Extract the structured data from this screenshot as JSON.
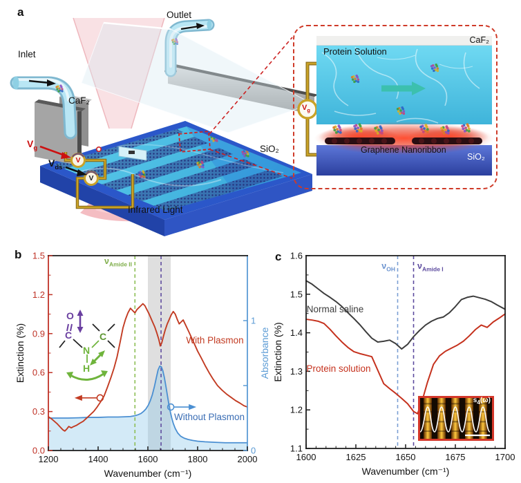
{
  "panel_labels": {
    "a": "a",
    "b": "b",
    "c": "c"
  },
  "panel_a": {
    "inlet": "Inlet",
    "outlet": "Outlet",
    "caf2": "CaF₂",
    "sio2": "SiO₂",
    "infrared": "Infrared Light",
    "vg": {
      "main": "V",
      "sub": "g"
    },
    "vds": {
      "main": "V",
      "sub": "ds"
    },
    "meter_glyph": "V",
    "inset": {
      "caf2": "CaF₂",
      "protein_solution": "Protein Solution",
      "graphene": "Graphene Nanoribbon",
      "sio2": "SiO₂",
      "vg": {
        "main": "V",
        "sub": "g"
      }
    }
  },
  "chart_data": [
    {
      "panel": "b",
      "type": "line",
      "xlabel": "Wavenumber (cm⁻¹)",
      "ylabel": "Extinction (%)",
      "ylabel_right": "Absorbance",
      "xlim": [
        1200,
        2000
      ],
      "ylim": [
        0,
        1.5
      ],
      "xticks": [
        1200,
        1400,
        1600,
        1800,
        2000
      ],
      "xtick_labels": [
        "1200",
        "1400",
        "1600",
        "1800",
        "2000"
      ],
      "xminor": 50,
      "yticks": [
        0,
        0.3,
        0.6,
        0.9,
        1.2,
        1.5
      ],
      "ytick_labels": [
        "0.0",
        "0.3",
        "0.6",
        "0.9",
        "1.2",
        "1.5"
      ],
      "yminor": 0.15,
      "right_ticks": [
        {
          "v": 0,
          "label": "0"
        },
        {
          "v": 0.5,
          "label": ""
        },
        {
          "v": 1,
          "label": "1"
        }
      ],
      "axis_colors": {
        "left": "#bf3226",
        "right": "#5b9bd5",
        "top": "#1a1a1a",
        "bottom": "#1a1a1a"
      },
      "band": {
        "x0": 1600,
        "x1": 1692,
        "color": "rgba(130,130,130,0.26)"
      },
      "vlines": [
        {
          "x": 1548,
          "color": "#8cbe54",
          "label": {
            "main": "ν",
            "sub": "Amide II"
          }
        },
        {
          "x": 1653,
          "color": "#5f4b9e",
          "label": null
        }
      ],
      "series": [
        {
          "name": "Without Plasmon",
          "color": "#4a8fd2",
          "width": 1.8,
          "fill": "rgba(140,200,235,0.38)",
          "x": [
            1200,
            1240,
            1280,
            1320,
            1360,
            1400,
            1440,
            1480,
            1510,
            1530,
            1548,
            1560,
            1572,
            1582,
            1592,
            1602,
            1610,
            1618,
            1626,
            1634,
            1641,
            1648,
            1654,
            1660,
            1666,
            1672,
            1678,
            1684,
            1690,
            1696,
            1702,
            1710,
            1720,
            1732,
            1746,
            1762,
            1780,
            1800,
            1830,
            1870,
            1910,
            1950,
            2000
          ],
          "y": [
            0.25,
            0.25,
            0.25,
            0.252,
            0.255,
            0.255,
            0.258,
            0.258,
            0.26,
            0.262,
            0.268,
            0.275,
            0.285,
            0.3,
            0.32,
            0.35,
            0.385,
            0.43,
            0.49,
            0.56,
            0.62,
            0.65,
            0.645,
            0.615,
            0.565,
            0.5,
            0.43,
            0.36,
            0.3,
            0.25,
            0.21,
            0.17,
            0.135,
            0.11,
            0.095,
            0.085,
            0.078,
            0.072,
            0.067,
            0.063,
            0.06,
            0.06,
            0.06
          ]
        },
        {
          "name": "With Plasmon",
          "color": "#c23b22",
          "width": 1.9,
          "x": [
            1200,
            1212,
            1224,
            1236,
            1248,
            1258,
            1266,
            1274,
            1282,
            1292,
            1302,
            1314,
            1326,
            1340,
            1354,
            1368,
            1382,
            1396,
            1410,
            1424,
            1438,
            1452,
            1464,
            1476,
            1488,
            1500,
            1510,
            1520,
            1530,
            1540,
            1548,
            1556,
            1564,
            1572,
            1580,
            1588,
            1596,
            1604,
            1612,
            1620,
            1628,
            1636,
            1644,
            1650,
            1656,
            1662,
            1670,
            1678,
            1686,
            1694,
            1702,
            1710,
            1718,
            1726,
            1734,
            1742,
            1752,
            1762,
            1774,
            1786,
            1800,
            1814,
            1830,
            1846,
            1862,
            1880,
            1898,
            1916,
            1934,
            1952,
            1970,
            1986,
            2000
          ],
          "y": [
            0.26,
            0.245,
            0.225,
            0.205,
            0.18,
            0.16,
            0.15,
            0.165,
            0.185,
            0.175,
            0.185,
            0.195,
            0.21,
            0.225,
            0.25,
            0.275,
            0.3,
            0.335,
            0.375,
            0.42,
            0.49,
            0.565,
            0.635,
            0.72,
            0.83,
            0.945,
            1.01,
            1.06,
            1.095,
            1.075,
            1.06,
            1.085,
            1.1,
            1.115,
            1.13,
            1.115,
            1.085,
            1.055,
            1.02,
            0.985,
            0.95,
            0.905,
            0.855,
            0.805,
            0.83,
            0.875,
            0.93,
            0.975,
            1.01,
            1.045,
            1.07,
            1.05,
            1.01,
            0.975,
            0.99,
            1.005,
            0.965,
            0.925,
            0.875,
            0.825,
            0.765,
            0.715,
            0.655,
            0.6,
            0.55,
            0.5,
            0.465,
            0.435,
            0.41,
            0.385,
            0.365,
            0.345,
            0.335
          ]
        }
      ],
      "pointers": [
        {
          "x": 1408,
          "y": 0.405,
          "dir": "left",
          "color": "#c23b22"
        },
        {
          "x": 1692,
          "y": 0.335,
          "dir": "right",
          "color": "#4a8fd2"
        }
      ],
      "annotations": [
        {
          "text": "With Plasmon",
          "color": "#c23b22"
        },
        {
          "text": "Without Plasmon",
          "color": "#3a6db4"
        }
      ],
      "molecule": {
        "o": "O",
        "c1": "C",
        "n": "N",
        "h": "H",
        "c2": "C"
      }
    },
    {
      "panel": "c",
      "type": "line",
      "xlabel": "Wavenumber (cm⁻¹)",
      "ylabel": "Extinction (%)",
      "xlim": [
        1600,
        1700
      ],
      "ylim": [
        1.1,
        1.6
      ],
      "xticks": [
        1600,
        1625,
        1650,
        1675,
        1700
      ],
      "xtick_labels": [
        "1600",
        "1625",
        "1650",
        "1675",
        "1700"
      ],
      "xminor": 5,
      "yticks": [
        1.1,
        1.2,
        1.3,
        1.4,
        1.5,
        1.6
      ],
      "ytick_labels": [
        "1.1",
        "1.2",
        "1.3",
        "1.4",
        "1.5",
        "1.6"
      ],
      "yminor": 0.05,
      "axis_colors": {
        "left": "#1a1a1a",
        "right": "#1a1a1a",
        "top": "#1a1a1a",
        "bottom": "#1a1a1a"
      },
      "vlines": [
        {
          "x": 1646,
          "color": "#7b9fd4",
          "label": {
            "main": "ν",
            "sub": "OH"
          }
        },
        {
          "x": 1654,
          "color": "#5c4a9e",
          "label": {
            "main": "ν",
            "sub": "Amide I"
          }
        }
      ],
      "series": [
        {
          "name": "Normal saline",
          "color": "#3d3d3d",
          "width": 2,
          "x": [
            1600,
            1603,
            1606,
            1609,
            1612,
            1615,
            1618,
            1621,
            1624,
            1627,
            1630,
            1633,
            1636,
            1639,
            1642,
            1645,
            1648,
            1651,
            1654,
            1657,
            1660,
            1663,
            1666,
            1669,
            1672,
            1675,
            1678,
            1681,
            1684,
            1687,
            1690,
            1693,
            1696,
            1700
          ],
          "y": [
            1.535,
            1.526,
            1.514,
            1.502,
            1.492,
            1.481,
            1.468,
            1.452,
            1.437,
            1.421,
            1.403,
            1.386,
            1.376,
            1.378,
            1.381,
            1.372,
            1.358,
            1.37,
            1.39,
            1.406,
            1.42,
            1.43,
            1.437,
            1.441,
            1.452,
            1.468,
            1.486,
            1.492,
            1.495,
            1.491,
            1.487,
            1.481,
            1.472,
            1.461
          ]
        },
        {
          "name": "Protein solution",
          "color": "#c5311d",
          "width": 2,
          "x": [
            1600,
            1603,
            1606,
            1609,
            1612,
            1615,
            1618,
            1621,
            1624,
            1627,
            1630,
            1633,
            1636,
            1639,
            1642,
            1645,
            1648,
            1651,
            1654,
            1656,
            1658,
            1661,
            1664,
            1667,
            1670,
            1673,
            1676,
            1679,
            1682,
            1685,
            1688,
            1691,
            1694,
            1697,
            1700
          ],
          "y": [
            1.435,
            1.433,
            1.43,
            1.424,
            1.409,
            1.392,
            1.376,
            1.362,
            1.351,
            1.346,
            1.342,
            1.338,
            1.303,
            1.268,
            1.255,
            1.243,
            1.23,
            1.216,
            1.196,
            1.19,
            1.218,
            1.272,
            1.318,
            1.34,
            1.352,
            1.36,
            1.368,
            1.378,
            1.392,
            1.408,
            1.42,
            1.414,
            1.428,
            1.438,
            1.449
          ]
        }
      ],
      "annotations": [
        {
          "text": "Normal saline",
          "color": "#3d3d3d"
        },
        {
          "text": "Protein solution",
          "color": "#c5311d"
        }
      ],
      "inset_label": {
        "main": "s",
        "sub": "4",
        "suffix": "(ω)"
      }
    }
  ]
}
